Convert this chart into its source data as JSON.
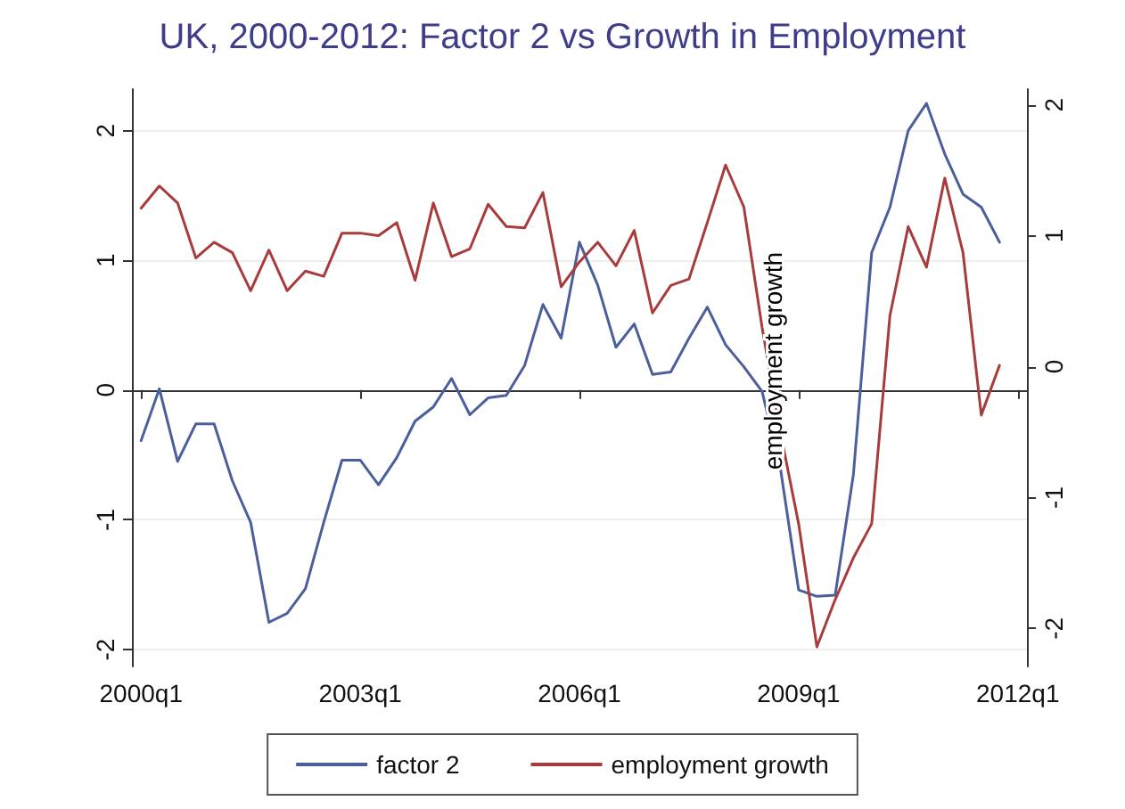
{
  "chart_data": {
    "type": "line",
    "title": "UK, 2000-2012: Factor 2 vs Growth in Employment",
    "categories": [
      "2000q1",
      null,
      null,
      null,
      null,
      null,
      null,
      null,
      null,
      null,
      null,
      null,
      "2003q1",
      null,
      null,
      null,
      null,
      null,
      null,
      null,
      null,
      null,
      null,
      null,
      "2006q1",
      null,
      null,
      null,
      null,
      null,
      null,
      null,
      null,
      null,
      null,
      null,
      "2009q1",
      null,
      null,
      null,
      null,
      null,
      null,
      null,
      null,
      null,
      null,
      null,
      "2012q1"
    ],
    "series": [
      {
        "name": "factor 2",
        "color": "#4a5f9c",
        "values": [
          -0.39,
          0.01,
          -0.55,
          -0.26,
          -0.26,
          -0.7,
          -1.02,
          -1.79,
          -1.72,
          -1.53,
          -1.02,
          -0.54,
          -0.54,
          -0.73,
          -0.52,
          -0.24,
          -0.13,
          0.09,
          -0.19,
          -0.06,
          -0.04,
          0.19,
          0.66,
          0.4,
          1.14,
          0.81,
          0.33,
          0.51,
          0.12,
          0.14,
          0.4,
          0.64,
          0.35,
          0.18,
          -0.01,
          -0.6,
          -1.54,
          -1.59,
          -1.58,
          -0.65,
          1.06,
          1.41,
          2.0,
          2.21,
          1.82,
          1.51,
          1.41,
          1.14,
          null
        ]
      },
      {
        "name": "employment growth",
        "color": "#a83c3c",
        "axis": "y2",
        "values": [
          1.21,
          1.38,
          1.25,
          0.83,
          0.95,
          0.87,
          0.58,
          0.89,
          0.58,
          0.73,
          0.69,
          1.02,
          1.02,
          1.0,
          1.1,
          0.66,
          1.25,
          0.84,
          0.9,
          1.24,
          1.07,
          1.06,
          1.33,
          0.61,
          0.8,
          0.95,
          0.77,
          1.04,
          0.41,
          0.62,
          0.67,
          1.1,
          1.54,
          1.22,
          0.3,
          -0.5,
          -1.2,
          -2.14,
          -1.78,
          -1.46,
          -1.2,
          0.39,
          1.07,
          0.76,
          1.44,
          0.87,
          -0.37,
          0.01,
          null
        ]
      }
    ],
    "ylim": [
      -2.13,
      2.32
    ],
    "yticks": [
      -2,
      -1,
      0,
      1,
      2
    ],
    "y2lim": [
      -2.29,
      2.12
    ],
    "y2ticks": [
      -2,
      -1,
      0,
      1,
      2
    ],
    "annotations": [
      "employment growth"
    ],
    "grid": "y",
    "legend": "bottom",
    "marker": "none",
    "line_style": "solid"
  }
}
